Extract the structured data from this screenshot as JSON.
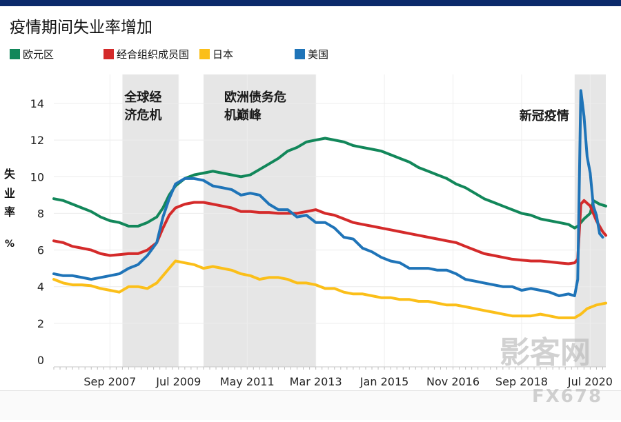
{
  "header": {
    "title": "疫情期间失业率增加"
  },
  "colors": {
    "euro": "#12875a",
    "oecd": "#d42a2a",
    "japan": "#fbbf19",
    "us": "#1f74b8",
    "shade": "#e6e6e6",
    "topbar": "#0b2a6b"
  },
  "chart_data": {
    "type": "line",
    "ylabel": "失业率 %",
    "ylim": [
      0,
      15
    ],
    "yticks": [
      0,
      2,
      4,
      6,
      8,
      10,
      12,
      14
    ],
    "xlim": [
      "2006-03",
      "2020-12"
    ],
    "xticks": [
      {
        "label": "Sep 2007",
        "date": "2007-09"
      },
      {
        "label": "Jul 2009",
        "date": "2009-07"
      },
      {
        "label": "May 2011",
        "date": "2011-05"
      },
      {
        "label": "Mar 2013",
        "date": "2013-03"
      },
      {
        "label": "Jan 2015",
        "date": "2015-01"
      },
      {
        "label": "Nov 2016",
        "date": "2016-11"
      },
      {
        "label": "Sep 2018",
        "date": "2018-09"
      },
      {
        "label": "Jul 2020",
        "date": "2020-07"
      }
    ],
    "shaded_periods": [
      {
        "label": "全球经济危机",
        "lines": [
          "全球经",
          "济危机"
        ],
        "start": "2008-01",
        "end": "2009-07"
      },
      {
        "label": "欧洲债务危机巅峰",
        "lines": [
          "欧洲债务危",
          "机巅峰"
        ],
        "start": "2010-03",
        "end": "2013-03"
      },
      {
        "label": "新冠疫情",
        "lines": [
          "新冠疫情"
        ],
        "start": "2020-02",
        "end": "2020-12"
      }
    ],
    "series": [
      {
        "name": "欧元区",
        "color": "#12875a",
        "points": [
          [
            "2006-03",
            8.8
          ],
          [
            "2006-06",
            8.7
          ],
          [
            "2006-09",
            8.5
          ],
          [
            "2006-12",
            8.3
          ],
          [
            "2007-03",
            8.1
          ],
          [
            "2007-06",
            7.8
          ],
          [
            "2007-09",
            7.6
          ],
          [
            "2007-12",
            7.5
          ],
          [
            "2008-03",
            7.3
          ],
          [
            "2008-06",
            7.3
          ],
          [
            "2008-09",
            7.5
          ],
          [
            "2008-12",
            7.8
          ],
          [
            "2009-02",
            8.3
          ],
          [
            "2009-04",
            9.0
          ],
          [
            "2009-06",
            9.5
          ],
          [
            "2009-09",
            9.9
          ],
          [
            "2009-12",
            10.1
          ],
          [
            "2010-03",
            10.2
          ],
          [
            "2010-06",
            10.3
          ],
          [
            "2010-09",
            10.2
          ],
          [
            "2010-12",
            10.1
          ],
          [
            "2011-03",
            10.0
          ],
          [
            "2011-06",
            10.1
          ],
          [
            "2011-09",
            10.4
          ],
          [
            "2011-12",
            10.7
          ],
          [
            "2012-03",
            11.0
          ],
          [
            "2012-06",
            11.4
          ],
          [
            "2012-09",
            11.6
          ],
          [
            "2012-12",
            11.9
          ],
          [
            "2013-03",
            12.0
          ],
          [
            "2013-06",
            12.1
          ],
          [
            "2013-09",
            12.0
          ],
          [
            "2013-12",
            11.9
          ],
          [
            "2014-03",
            11.7
          ],
          [
            "2014-06",
            11.6
          ],
          [
            "2014-09",
            11.5
          ],
          [
            "2014-12",
            11.4
          ],
          [
            "2015-03",
            11.2
          ],
          [
            "2015-06",
            11.0
          ],
          [
            "2015-09",
            10.8
          ],
          [
            "2015-12",
            10.5
          ],
          [
            "2016-03",
            10.3
          ],
          [
            "2016-06",
            10.1
          ],
          [
            "2016-09",
            9.9
          ],
          [
            "2016-12",
            9.6
          ],
          [
            "2017-03",
            9.4
          ],
          [
            "2017-06",
            9.1
          ],
          [
            "2017-09",
            8.8
          ],
          [
            "2017-12",
            8.6
          ],
          [
            "2018-03",
            8.4
          ],
          [
            "2018-06",
            8.2
          ],
          [
            "2018-09",
            8.0
          ],
          [
            "2018-12",
            7.9
          ],
          [
            "2019-03",
            7.7
          ],
          [
            "2019-06",
            7.6
          ],
          [
            "2019-09",
            7.5
          ],
          [
            "2019-12",
            7.4
          ],
          [
            "2020-02",
            7.2
          ],
          [
            "2020-03",
            7.3
          ],
          [
            "2020-05",
            7.7
          ],
          [
            "2020-07",
            8.0
          ],
          [
            "2020-08",
            8.7
          ],
          [
            "2020-10",
            8.5
          ],
          [
            "2020-12",
            8.4
          ]
        ]
      },
      {
        "name": "经合组织成员国",
        "color": "#d42a2a",
        "points": [
          [
            "2006-03",
            6.5
          ],
          [
            "2006-06",
            6.4
          ],
          [
            "2006-09",
            6.2
          ],
          [
            "2006-12",
            6.1
          ],
          [
            "2007-03",
            6.0
          ],
          [
            "2007-06",
            5.8
          ],
          [
            "2007-09",
            5.7
          ],
          [
            "2007-12",
            5.75
          ],
          [
            "2008-03",
            5.8
          ],
          [
            "2008-06",
            5.8
          ],
          [
            "2008-09",
            6.0
          ],
          [
            "2008-12",
            6.4
          ],
          [
            "2009-02",
            7.2
          ],
          [
            "2009-04",
            7.9
          ],
          [
            "2009-06",
            8.3
          ],
          [
            "2009-09",
            8.5
          ],
          [
            "2009-12",
            8.6
          ],
          [
            "2010-03",
            8.6
          ],
          [
            "2010-06",
            8.5
          ],
          [
            "2010-09",
            8.4
          ],
          [
            "2010-12",
            8.3
          ],
          [
            "2011-03",
            8.1
          ],
          [
            "2011-06",
            8.1
          ],
          [
            "2011-09",
            8.05
          ],
          [
            "2011-12",
            8.05
          ],
          [
            "2012-03",
            8.0
          ],
          [
            "2012-06",
            8.0
          ],
          [
            "2012-09",
            8.0
          ],
          [
            "2012-12",
            8.1
          ],
          [
            "2013-03",
            8.2
          ],
          [
            "2013-06",
            8.0
          ],
          [
            "2013-09",
            7.9
          ],
          [
            "2013-12",
            7.7
          ],
          [
            "2014-03",
            7.5
          ],
          [
            "2014-06",
            7.4
          ],
          [
            "2014-09",
            7.3
          ],
          [
            "2014-12",
            7.2
          ],
          [
            "2015-03",
            7.1
          ],
          [
            "2015-06",
            7.0
          ],
          [
            "2015-09",
            6.9
          ],
          [
            "2015-12",
            6.8
          ],
          [
            "2016-03",
            6.7
          ],
          [
            "2016-06",
            6.6
          ],
          [
            "2016-09",
            6.5
          ],
          [
            "2016-12",
            6.4
          ],
          [
            "2017-03",
            6.2
          ],
          [
            "2017-06",
            6.0
          ],
          [
            "2017-09",
            5.8
          ],
          [
            "2017-12",
            5.7
          ],
          [
            "2018-03",
            5.6
          ],
          [
            "2018-06",
            5.5
          ],
          [
            "2018-09",
            5.45
          ],
          [
            "2018-12",
            5.4
          ],
          [
            "2019-03",
            5.4
          ],
          [
            "2019-06",
            5.35
          ],
          [
            "2019-09",
            5.3
          ],
          [
            "2019-12",
            5.25
          ],
          [
            "2020-02",
            5.3
          ],
          [
            "2020-03",
            5.5
          ],
          [
            "2020-04",
            8.5
          ],
          [
            "2020-05",
            8.7
          ],
          [
            "2020-07",
            8.4
          ],
          [
            "2020-09",
            7.6
          ],
          [
            "2020-11",
            7.0
          ],
          [
            "2020-12",
            6.8
          ]
        ]
      },
      {
        "name": "日本",
        "color": "#fbbf19",
        "points": [
          [
            "2006-03",
            4.4
          ],
          [
            "2006-06",
            4.2
          ],
          [
            "2006-09",
            4.1
          ],
          [
            "2006-12",
            4.1
          ],
          [
            "2007-03",
            4.05
          ],
          [
            "2007-06",
            3.9
          ],
          [
            "2007-09",
            3.8
          ],
          [
            "2007-12",
            3.7
          ],
          [
            "2008-03",
            4.0
          ],
          [
            "2008-06",
            4.0
          ],
          [
            "2008-09",
            3.9
          ],
          [
            "2008-12",
            4.2
          ],
          [
            "2009-02",
            4.6
          ],
          [
            "2009-04",
            5.0
          ],
          [
            "2009-06",
            5.4
          ],
          [
            "2009-09",
            5.3
          ],
          [
            "2009-12",
            5.2
          ],
          [
            "2010-03",
            5.0
          ],
          [
            "2010-06",
            5.1
          ],
          [
            "2010-09",
            5.0
          ],
          [
            "2010-12",
            4.9
          ],
          [
            "2011-03",
            4.7
          ],
          [
            "2011-06",
            4.6
          ],
          [
            "2011-09",
            4.4
          ],
          [
            "2011-12",
            4.5
          ],
          [
            "2012-03",
            4.5
          ],
          [
            "2012-06",
            4.4
          ],
          [
            "2012-09",
            4.2
          ],
          [
            "2012-12",
            4.2
          ],
          [
            "2013-03",
            4.1
          ],
          [
            "2013-06",
            3.9
          ],
          [
            "2013-09",
            3.9
          ],
          [
            "2013-12",
            3.7
          ],
          [
            "2014-03",
            3.6
          ],
          [
            "2014-06",
            3.6
          ],
          [
            "2014-09",
            3.5
          ],
          [
            "2014-12",
            3.4
          ],
          [
            "2015-03",
            3.4
          ],
          [
            "2015-06",
            3.3
          ],
          [
            "2015-09",
            3.3
          ],
          [
            "2015-12",
            3.2
          ],
          [
            "2016-03",
            3.2
          ],
          [
            "2016-06",
            3.1
          ],
          [
            "2016-09",
            3.0
          ],
          [
            "2016-12",
            3.0
          ],
          [
            "2017-03",
            2.9
          ],
          [
            "2017-06",
            2.8
          ],
          [
            "2017-09",
            2.7
          ],
          [
            "2017-12",
            2.6
          ],
          [
            "2018-03",
            2.5
          ],
          [
            "2018-06",
            2.4
          ],
          [
            "2018-09",
            2.4
          ],
          [
            "2018-12",
            2.4
          ],
          [
            "2019-03",
            2.5
          ],
          [
            "2019-06",
            2.4
          ],
          [
            "2019-09",
            2.3
          ],
          [
            "2019-12",
            2.3
          ],
          [
            "2020-02",
            2.3
          ],
          [
            "2020-04",
            2.5
          ],
          [
            "2020-06",
            2.8
          ],
          [
            "2020-09",
            3.0
          ],
          [
            "2020-12",
            3.1
          ]
        ]
      },
      {
        "name": "美国",
        "color": "#1f74b8",
        "points": [
          [
            "2006-03",
            4.7
          ],
          [
            "2006-06",
            4.6
          ],
          [
            "2006-09",
            4.6
          ],
          [
            "2006-12",
            4.5
          ],
          [
            "2007-03",
            4.4
          ],
          [
            "2007-06",
            4.5
          ],
          [
            "2007-09",
            4.6
          ],
          [
            "2007-12",
            4.7
          ],
          [
            "2008-03",
            5.0
          ],
          [
            "2008-06",
            5.2
          ],
          [
            "2008-09",
            5.7
          ],
          [
            "2008-12",
            6.4
          ],
          [
            "2009-02",
            7.8
          ],
          [
            "2009-04",
            8.8
          ],
          [
            "2009-06",
            9.6
          ],
          [
            "2009-09",
            9.9
          ],
          [
            "2009-12",
            9.9
          ],
          [
            "2010-03",
            9.8
          ],
          [
            "2010-06",
            9.5
          ],
          [
            "2010-09",
            9.4
          ],
          [
            "2010-12",
            9.3
          ],
          [
            "2011-03",
            9.0
          ],
          [
            "2011-06",
            9.1
          ],
          [
            "2011-09",
            9.0
          ],
          [
            "2011-12",
            8.5
          ],
          [
            "2012-03",
            8.2
          ],
          [
            "2012-06",
            8.2
          ],
          [
            "2012-09",
            7.8
          ],
          [
            "2012-12",
            7.9
          ],
          [
            "2013-03",
            7.5
          ],
          [
            "2013-06",
            7.5
          ],
          [
            "2013-09",
            7.2
          ],
          [
            "2013-12",
            6.7
          ],
          [
            "2014-03",
            6.6
          ],
          [
            "2014-06",
            6.1
          ],
          [
            "2014-09",
            5.9
          ],
          [
            "2014-12",
            5.6
          ],
          [
            "2015-03",
            5.4
          ],
          [
            "2015-06",
            5.3
          ],
          [
            "2015-09",
            5.0
          ],
          [
            "2015-12",
            5.0
          ],
          [
            "2016-03",
            5.0
          ],
          [
            "2016-06",
            4.9
          ],
          [
            "2016-09",
            4.9
          ],
          [
            "2016-12",
            4.7
          ],
          [
            "2017-03",
            4.4
          ],
          [
            "2017-06",
            4.3
          ],
          [
            "2017-09",
            4.2
          ],
          [
            "2017-12",
            4.1
          ],
          [
            "2018-03",
            4.0
          ],
          [
            "2018-06",
            4.0
          ],
          [
            "2018-09",
            3.8
          ],
          [
            "2018-12",
            3.9
          ],
          [
            "2019-03",
            3.8
          ],
          [
            "2019-06",
            3.7
          ],
          [
            "2019-09",
            3.5
          ],
          [
            "2019-12",
            3.6
          ],
          [
            "2020-02",
            3.5
          ],
          [
            "2020-03",
            4.4
          ],
          [
            "2020-04",
            14.7
          ],
          [
            "2020-05",
            13.3
          ],
          [
            "2020-06",
            11.1
          ],
          [
            "2020-07",
            10.2
          ],
          [
            "2020-08",
            8.4
          ],
          [
            "2020-09",
            7.9
          ],
          [
            "2020-10",
            6.9
          ],
          [
            "2020-11",
            6.7
          ]
        ]
      }
    ]
  },
  "watermark": {
    "line1": "影客网",
    "line2": "FX678"
  }
}
